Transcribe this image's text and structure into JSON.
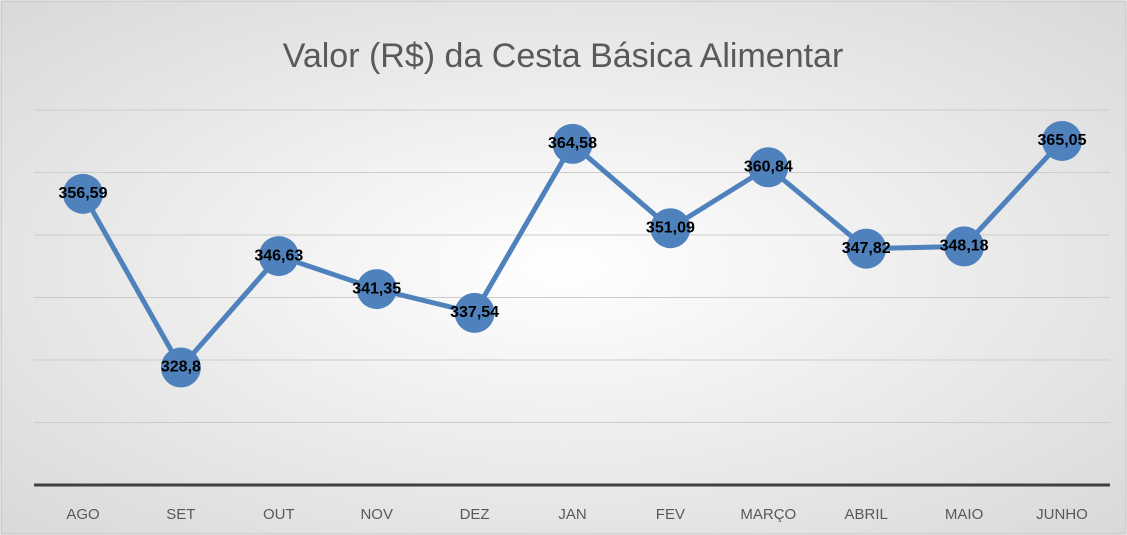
{
  "chart_data": {
    "type": "line",
    "title": "Valor (R$) da Cesta Básica Alimentar",
    "categories": [
      "AGO",
      "SET",
      "OUT",
      "NOV",
      "DEZ",
      "JAN",
      "FEV",
      "MARÇO",
      "ABRIL",
      "MAIO",
      "JUNHO"
    ],
    "series": [
      {
        "name": "Valor",
        "color": "#4f81bd",
        "values": [
          356.59,
          328.8,
          346.63,
          341.35,
          337.54,
          364.58,
          351.09,
          360.84,
          347.82,
          348.18,
          365.05
        ],
        "value_labels": [
          "356,59",
          "328,8",
          "346,63",
          "341,35",
          "337,54",
          "364,58",
          "351,09",
          "360,84",
          "347,82",
          "348,18",
          "365,05"
        ]
      }
    ],
    "ylim": [
      310,
      370
    ],
    "yticks": [
      310,
      320,
      330,
      340,
      350,
      360,
      370
    ],
    "grid": true
  }
}
